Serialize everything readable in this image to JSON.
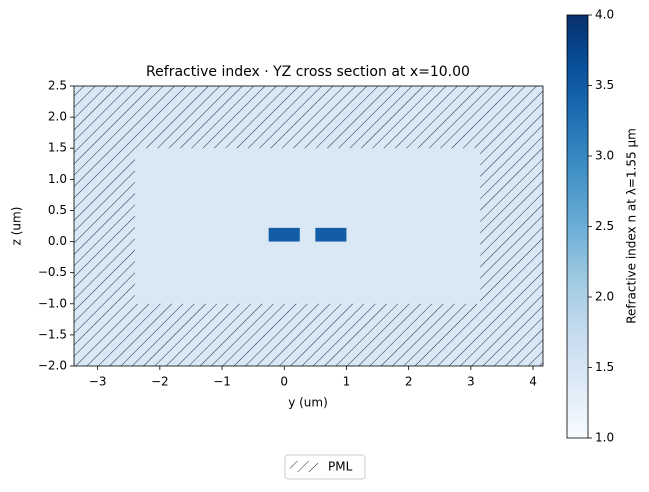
{
  "chart_data": {
    "type": "cross_section",
    "title": "Refractive index · YZ cross section at x=10.00",
    "xlabel": "y (um)",
    "ylabel": "z (um)",
    "xlim": [
      -3.38,
      4.16
    ],
    "ylim": [
      -2.0,
      2.5
    ],
    "xticks": [
      {
        "value": -3,
        "label": "−3"
      },
      {
        "value": -2,
        "label": "−2"
      },
      {
        "value": -1,
        "label": "−1"
      },
      0,
      1,
      2,
      3,
      4
    ],
    "yticks": [
      {
        "value": -2.0,
        "label": "−2.0"
      },
      {
        "value": -1.5,
        "label": "−1.5"
      },
      {
        "value": -1.0,
        "label": "−1.0"
      },
      {
        "value": -0.5,
        "label": "−0.5"
      },
      {
        "value": 0,
        "label": "0.0"
      },
      0.5,
      {
        "value": 1,
        "label": "1.0"
      },
      1.5,
      {
        "value": 2,
        "label": "2.0"
      },
      2.5
    ],
    "pml": {
      "name": "PML",
      "n": 1.44
    },
    "regions": [
      {
        "y": [
          -2.4,
          3.15
        ],
        "z": [
          -1.0,
          1.5
        ],
        "n": 1.44
      },
      {
        "y": [
          -0.25,
          0.25
        ],
        "z": [
          0,
          0.22
        ],
        "n": 3.48
      },
      {
        "y": [
          0.5,
          1.0
        ],
        "z": [
          0,
          0.22
        ],
        "n": 3.48
      }
    ],
    "colormap": "Blues",
    "colorbar_label": "Refractive index n at λ=1.55 μm",
    "clim": [
      1.0,
      4.0
    ],
    "cticks": [
      {
        "value": 1,
        "label": "1.0"
      },
      1.5,
      {
        "value": 2,
        "label": "2.0"
      },
      2.5,
      {
        "value": 3,
        "label": "3.0"
      },
      3.5,
      {
        "value": 4,
        "label": "4.0"
      }
    ],
    "legend": "lower center"
  }
}
